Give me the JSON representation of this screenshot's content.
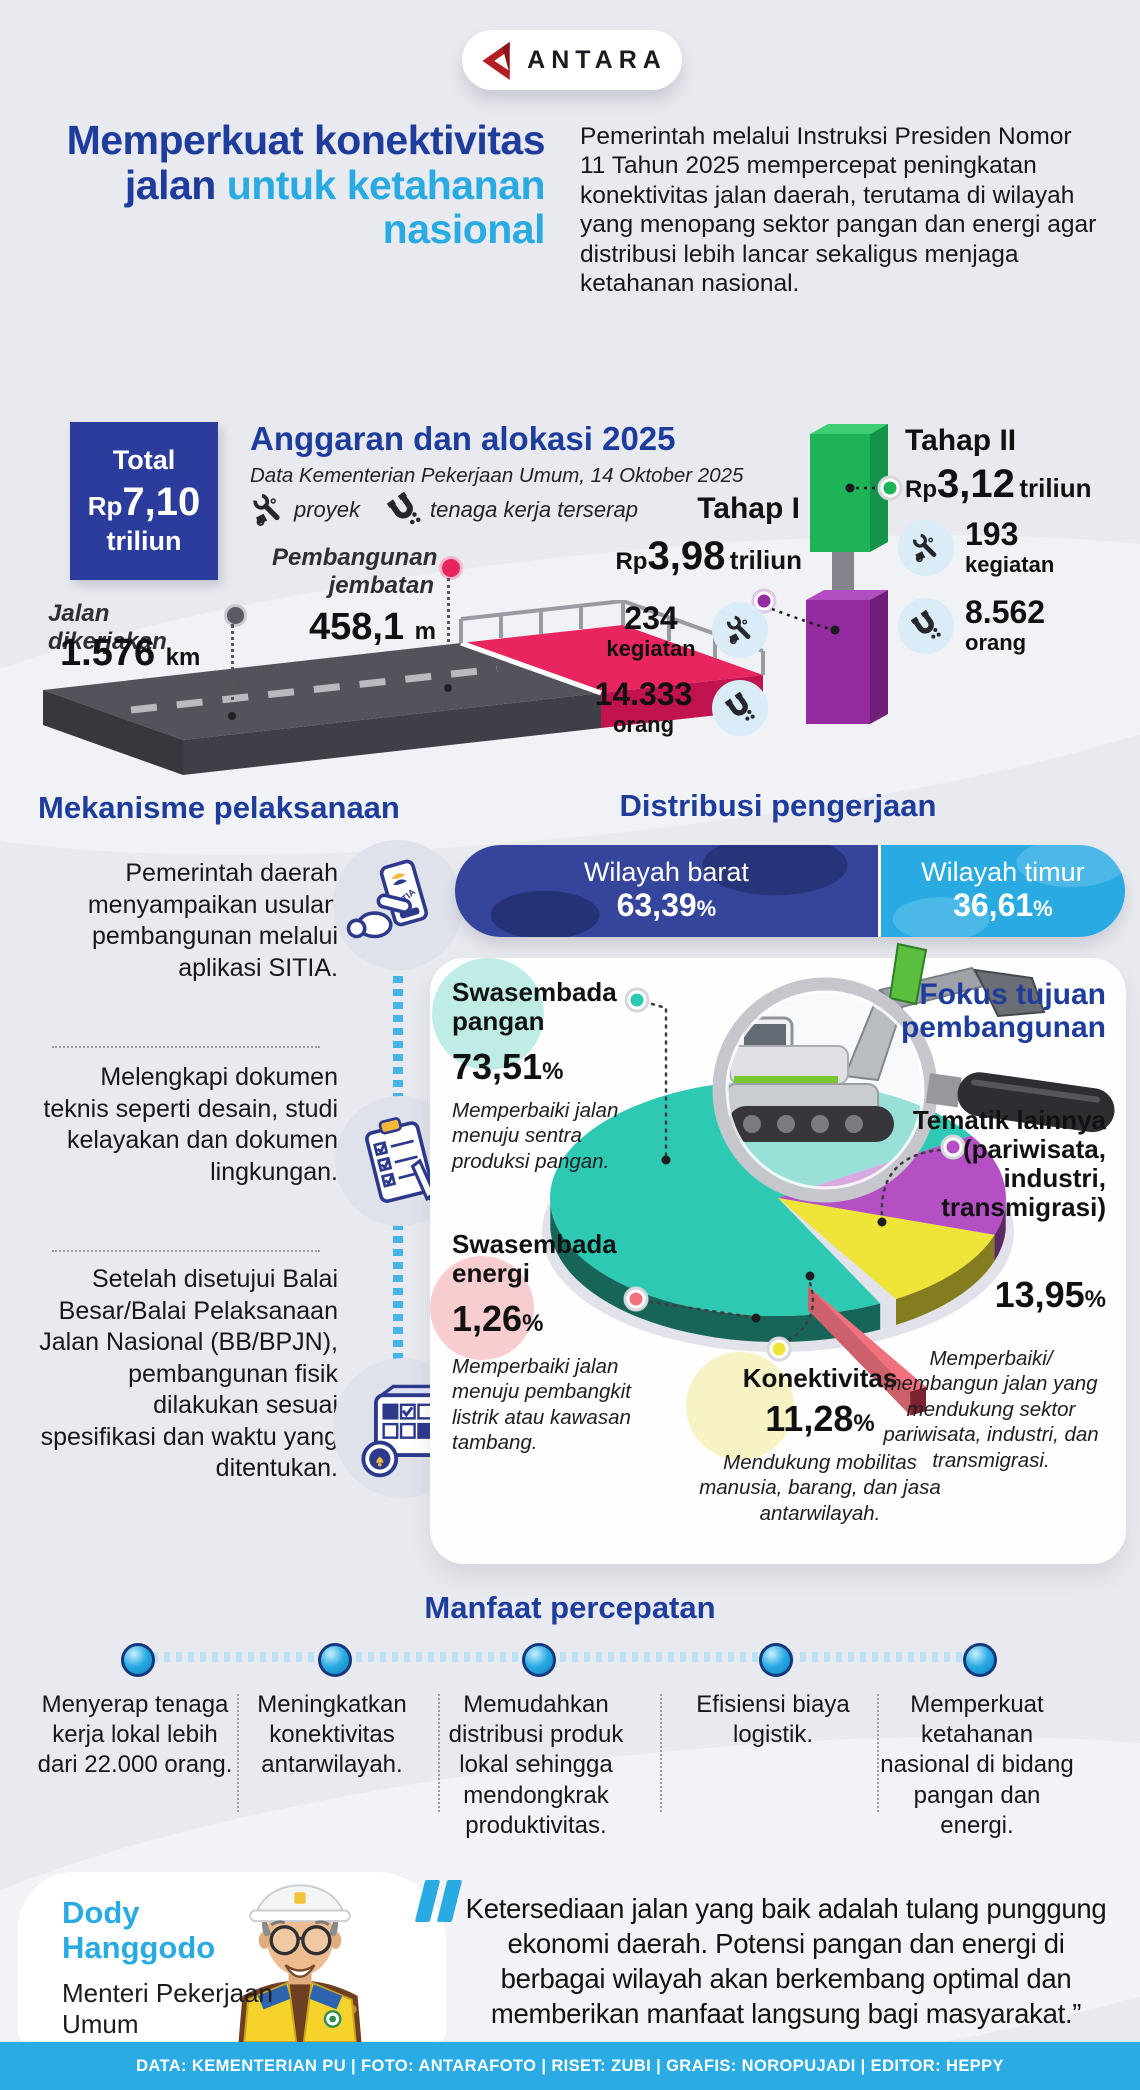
{
  "brand": {
    "name": "ANTARA"
  },
  "header": {
    "title_dark": "Memperkuat konektivitas jalan",
    "title_light": "untuk ketahanan nasional",
    "intro": "Pemerintah melalui Instruksi Presiden Nomor 11 Tahun 2025 mempercepat peningkatan konektivitas jalan daerah, terutama di wilayah yang menopang sektor pangan dan energi agar distribusi lebih lancar sekaligus menjaga ketahanan nasional."
  },
  "anggaran": {
    "heading": "Anggaran dan alokasi 2025",
    "source": "Data Kementerian Pekerjaan Umum, 14 Oktober 2025",
    "total": {
      "label": "Total",
      "prefix": "Rp",
      "amount": "7,10",
      "unit": "triliun"
    },
    "legend": {
      "proyek": "proyek",
      "tenaga": "tenaga kerja terserap"
    },
    "jalan": {
      "label": "Jalan dikerjakan",
      "value": "1.576",
      "unit": "km"
    },
    "jembatan": {
      "label": "Pembangunan jembatan",
      "value": "458,1",
      "unit": "m"
    },
    "tahap1": {
      "name": "Tahap I",
      "prefix": "Rp",
      "amount": "3,98",
      "unit": "triliun",
      "kegiatan_value": "234",
      "kegiatan_label": "kegiatan",
      "orang_value": "14.333",
      "orang_label": "orang"
    },
    "tahap2": {
      "name": "Tahap II",
      "prefix": "Rp",
      "amount": "3,12",
      "unit": "triliun",
      "kegiatan_value": "193",
      "kegiatan_label": "kegiatan",
      "orang_value": "8.562",
      "orang_label": "orang"
    }
  },
  "mekanisme": {
    "heading": "Mekanisme pelaksanaan",
    "steps": [
      {
        "icon": "phone-sitia",
        "text": "Pemerintah daerah menyampaikan usulan pembangunan melalui aplikasi SITIA."
      },
      {
        "icon": "document-checklist",
        "text": "Melengkapi dokumen teknis seperti desain, studi kelayakan dan dokumen lingkungan."
      },
      {
        "icon": "schedule-board",
        "text": "Setelah disetujui Balai Besar/Balai Pelaksanaan Jalan Nasional (BB/BPJN), pembangunan fisik dilakukan sesuai spesifikasi dan waktu yang ditentukan."
      }
    ]
  },
  "distribusi": {
    "heading": "Distribusi pengerjaan",
    "barat": {
      "label": "Wilayah barat",
      "value": "63,39",
      "unit": "%"
    },
    "timur": {
      "label": "Wilayah timur",
      "value": "36,61",
      "unit": "%"
    },
    "fokus_heading": "Fokus tujuan pembangunan",
    "pangan": {
      "label": "Swasembada pangan",
      "value": "73,51",
      "unit": "%",
      "desc": "Memperbaiki jalan menuju sentra produksi pangan."
    },
    "energi": {
      "label": "Swasembada energi",
      "value": "1,26",
      "unit": "%",
      "desc": "Memperbaiki jalan menuju pembangkit listrik atau kawasan tambang."
    },
    "konektivitas": {
      "label": "Konektivitas",
      "value": "11,28",
      "unit": "%",
      "desc": "Mendukung mobilitas manusia, barang, dan jasa antarwilayah."
    },
    "tematik": {
      "label": "Tematik lainnya (pariwisata, industri, transmigrasi)",
      "value": "13,95",
      "unit": "%",
      "desc": "Memperbaiki/ membangun jalan yang mendukung sektor pariwisata, industri, dan transmigrasi."
    }
  },
  "manfaat": {
    "heading": "Manfaat percepatan",
    "items": [
      "Menyerap tenaga kerja lokal lebih dari 22.000 orang.",
      "Meningkatkan konektivitas antarwilayah.",
      "Memudahkan distribusi produk lokal sehingga mendongkrak produktivitas.",
      "Efisiensi biaya logistik.",
      "Memperkuat ketahanan nasional di bidang pangan dan energi."
    ]
  },
  "quote": {
    "text": "Ketersediaan jalan yang baik adalah tulang punggung ekonomi daerah. Potensi pangan dan energi di berbagai wilayah akan berkembang optimal dan memberikan manfaat langsung bagi masyarakat.”",
    "person": "Dody Hanggodo",
    "role": "Menteri Pekerjaan Umum"
  },
  "footer": {
    "credits": "DATA: KEMENTERIAN PU | FOTO: ANTARAFOTO | RISET: ZUBI | GRAFIS: NOROPUJADI | EDITOR: HEPPY"
  },
  "colors": {
    "dark_blue": "#1e3c9b",
    "light_blue": "#29abe2",
    "box_blue": "#2b3c9d",
    "green_bar": "#1db457",
    "purple_bar": "#942b9e",
    "teal": "#2ec9b2",
    "pink": "#f1727e",
    "yellow": "#efe438",
    "purple": "#b44fc4",
    "bridge_pink": "#e8255f",
    "road_gray": "#53535c",
    "footer_blue": "#2aabe3",
    "background": "#e9eaf0"
  },
  "chart_data": [
    {
      "type": "bar",
      "title": "Distribusi pengerjaan",
      "categories": [
        "Wilayah barat",
        "Wilayah timur"
      ],
      "values": [
        63.39,
        36.61
      ],
      "unit": "%",
      "colors": [
        "#35459c",
        "#29abe2"
      ],
      "layout": "horizontal split pill, labels inside"
    },
    {
      "type": "pie",
      "title": "Fokus tujuan pembangunan",
      "slices": [
        {
          "label": "Swasembada pangan",
          "value": 73.51,
          "color": "#2ec9b2",
          "note": "Memperbaiki jalan menuju sentra produksi pangan."
        },
        {
          "label": "Swasembada energi",
          "value": 1.26,
          "color": "#f1727e",
          "pulled": true,
          "note": "Memperbaiki jalan menuju pembangkit listrik atau kawasan tambang."
        },
        {
          "label": "Konektivitas",
          "value": 11.28,
          "color": "#efe438",
          "note": "Mendukung mobilitas manusia, barang, dan jasa antarwilayah."
        },
        {
          "label": "Tematik lainnya (pariwisata, industri, transmigrasi)",
          "value": 13.95,
          "color": "#b44fc4",
          "note": "Memperbaiki/membangun jalan yang mendukung sektor pariwisata, industri, dan transmigrasi."
        }
      ],
      "legend_position": "around pie",
      "style": "3D ellipse pie with pulled slice"
    },
    {
      "type": "bar",
      "title": "Anggaran dan alokasi 2025 (Rp triliun)",
      "categories": [
        "Tahap I",
        "Tahap II"
      ],
      "values": [
        3.98,
        3.12
      ],
      "unit": "Rp triliun",
      "colors": [
        "#942b9e",
        "#1db457"
      ],
      "extra": {
        "total_rp_triliun": 7.1,
        "jalan_dikerjakan_km": 1576,
        "pembangunan_jembatan_m": 458.1,
        "tahap1": {
          "kegiatan": 234,
          "orang": 14333
        },
        "tahap2": {
          "kegiatan": 193,
          "orang": 8562
        }
      }
    }
  ]
}
